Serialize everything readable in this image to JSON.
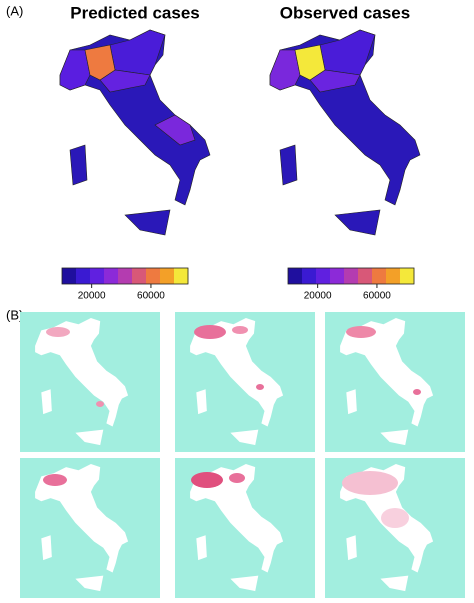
{
  "panel_a": {
    "label": "(A)",
    "maps": [
      {
        "title": "Predicted cases"
      },
      {
        "title": "Observed cases"
      }
    ],
    "colorbar": {
      "lim": [
        0,
        85000
      ],
      "ticks": [
        20000,
        60000
      ],
      "colors": [
        "#1f0f9e",
        "#3a1ad2",
        "#6020e0",
        "#8c2ad8",
        "#b43cb0",
        "#d85878",
        "#ee7a40",
        "#f3a028",
        "#f4e83a"
      ]
    }
  },
  "panel_b": {
    "label": "(B)"
  }
}
